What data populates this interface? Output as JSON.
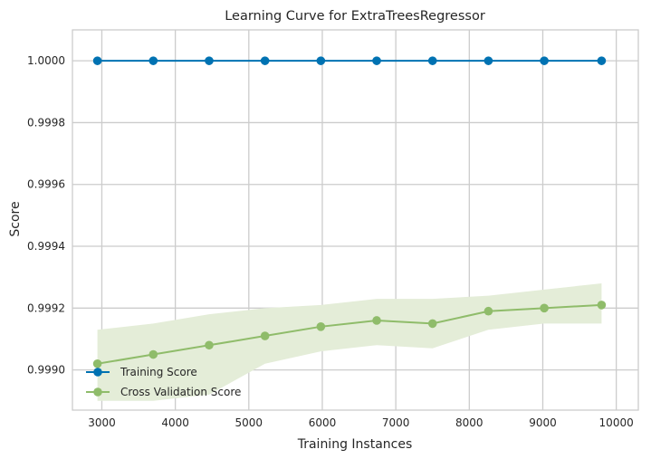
{
  "chart_data": {
    "type": "line",
    "title": "Learning Curve for ExtraTreesRegressor",
    "xlabel": "Training Instances",
    "ylabel": "Score",
    "xlim": [
      2600,
      10300
    ],
    "ylim": [
      0.99887,
      1.0001
    ],
    "x_ticks": [
      3000,
      4000,
      5000,
      6000,
      7000,
      8000,
      9000,
      10000
    ],
    "x_tick_labels": [
      "3000",
      "4000",
      "5000",
      "6000",
      "7000",
      "8000",
      "9000",
      "10000"
    ],
    "y_ticks": [
      0.999,
      0.9992,
      0.9994,
      0.9996,
      0.9998,
      1.0
    ],
    "y_tick_labels": [
      "0.9990",
      "0.9992",
      "0.9994",
      "0.9996",
      "0.9998",
      "1.0000"
    ],
    "grid": true,
    "legend_position": "lower-left",
    "x": [
      2940,
      3700,
      4460,
      5220,
      5980,
      6740,
      7500,
      8260,
      9020,
      9800
    ],
    "series": [
      {
        "name": "Training Score",
        "color": "#0072B2",
        "values": [
          1.0,
          1.0,
          1.0,
          1.0,
          1.0,
          1.0,
          1.0,
          1.0,
          1.0,
          1.0
        ],
        "band_upper": [
          1.0,
          1.0,
          1.0,
          1.0,
          1.0,
          1.0,
          1.0,
          1.0,
          1.0,
          1.0
        ],
        "band_lower": [
          1.0,
          1.0,
          1.0,
          1.0,
          1.0,
          1.0,
          1.0,
          1.0,
          1.0,
          1.0
        ]
      },
      {
        "name": "Cross Validation Score",
        "color": "#8FBC6A",
        "band_color": "#E4EDD8",
        "values": [
          0.99902,
          0.99905,
          0.99908,
          0.99911,
          0.99914,
          0.99916,
          0.99915,
          0.99919,
          0.9992,
          0.99921
        ],
        "band_upper": [
          0.99913,
          0.99915,
          0.99918,
          0.9992,
          0.99921,
          0.99923,
          0.99923,
          0.99924,
          0.99926,
          0.99928
        ],
        "band_lower": [
          0.9989,
          0.9989,
          0.99892,
          0.99902,
          0.99906,
          0.99908,
          0.99907,
          0.99913,
          0.99915,
          0.99915
        ]
      }
    ]
  }
}
